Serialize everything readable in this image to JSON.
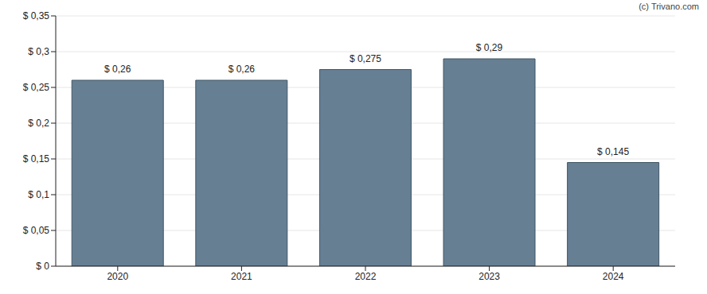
{
  "chart_data": {
    "type": "bar",
    "annotations": [
      "(c) Trivano.com"
    ],
    "categories": [
      "2020",
      "2021",
      "2022",
      "2023",
      "2024"
    ],
    "values": [
      0.26,
      0.26,
      0.275,
      0.29,
      0.145
    ],
    "value_labels": [
      "$ 0,26",
      "$ 0,26",
      "$ 0,275",
      "$ 0,29",
      "$ 0,145"
    ],
    "data_labels": true,
    "color": "#667f93",
    "ylim": [
      0,
      0.35
    ],
    "yticks": [
      {
        "value": 0,
        "label": "$ 0"
      },
      {
        "value": 0.05,
        "label": "$ 0,05"
      },
      {
        "value": 0.1,
        "label": "$ 0,1"
      },
      {
        "value": 0.15,
        "label": "$ 0,15"
      },
      {
        "value": 0.2,
        "label": "$ 0,2"
      },
      {
        "value": 0.25,
        "label": "$ 0,25"
      },
      {
        "value": 0.3,
        "label": "$ 0,3"
      },
      {
        "value": 0.35,
        "label": "$ 0,35"
      }
    ],
    "grid": true
  }
}
